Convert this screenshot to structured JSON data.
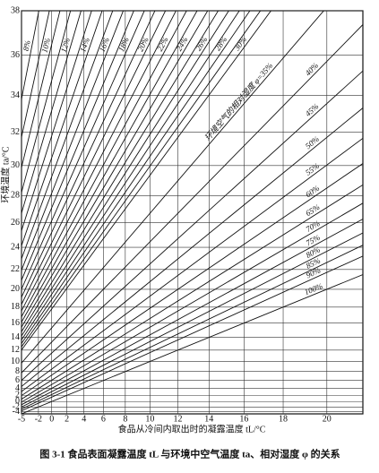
{
  "chart_data": {
    "type": "line",
    "title": "图 3-1  食品表面凝露温度 tL 与环境中空气温度 ta、相对湿度 φ 的关系",
    "xlabel": "食品从冷间内取出时的凝露温度 tL/°C",
    "ylabel": "环境温度 ta/°C",
    "scale": "saturation-vapor-pressure",
    "values": [
      8,
      9,
      10,
      11,
      12,
      13,
      14,
      15,
      16,
      17,
      18,
      19,
      20,
      21,
      22,
      23,
      24,
      25,
      26,
      27,
      28,
      29,
      30,
      35,
      40,
      45,
      50,
      55,
      60,
      65,
      70,
      75,
      80,
      85,
      90,
      100
    ],
    "value_labels": [
      "8%",
      null,
      "10%",
      null,
      "12%",
      null,
      "14%",
      null,
      "16%",
      null,
      "18%",
      null,
      "20%",
      null,
      "22%",
      null,
      "24%",
      null,
      "26%",
      null,
      "28%",
      null,
      "30%",
      "环境空气的相对湿度 φ=35%",
      "40%",
      "45%",
      "50%",
      "55%",
      "60%",
      "65%",
      "70%",
      "75%",
      "80%",
      "85%",
      "90%",
      "100%"
    ],
    "color": "#111111",
    "xlim": [
      -5,
      21.5
    ],
    "ylim": [
      -5,
      38
    ],
    "xticks": [
      -5,
      -2,
      0,
      2,
      4,
      6,
      8,
      10,
      12,
      14,
      16,
      18,
      20
    ],
    "yticks": [
      -4,
      -2,
      0,
      2,
      4,
      6,
      8,
      10,
      12,
      14,
      16,
      18,
      20,
      22,
      24,
      26,
      28,
      30,
      32,
      34,
      36,
      38
    ],
    "grid": true
  }
}
